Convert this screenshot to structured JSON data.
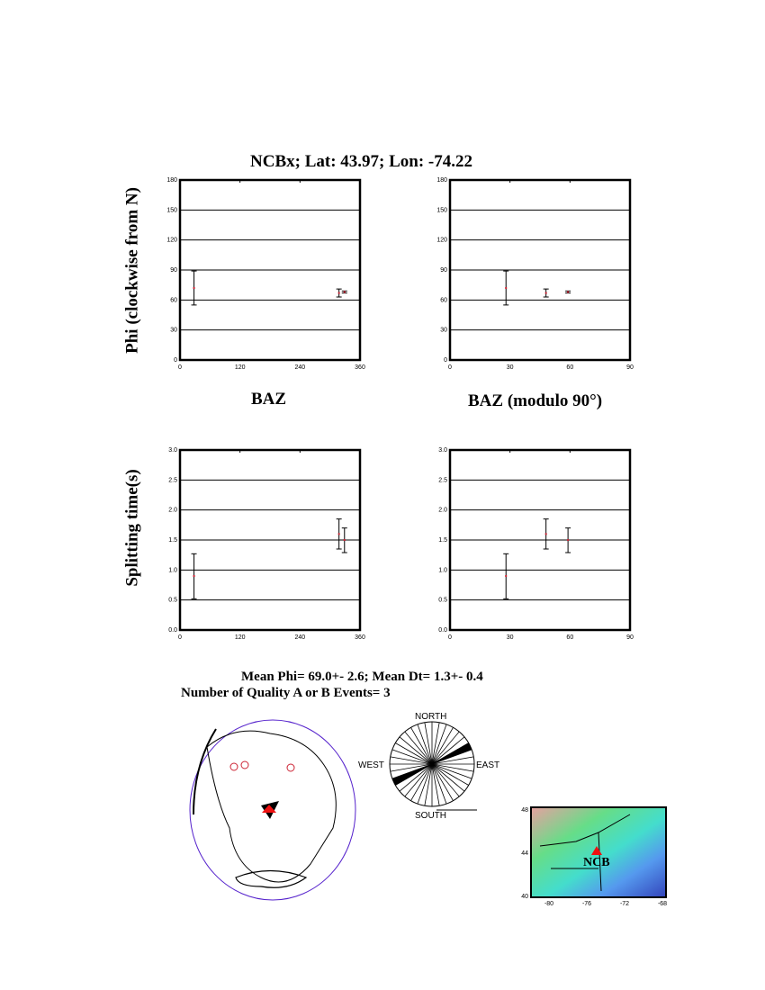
{
  "title": "NCBx; Lat:  43.97;  Lon:  -74.22",
  "ylabel_phi": "Phi (clockwise from N)",
  "ylabel_dt": "Splitting time(s)",
  "xlabel_baz": "BAZ",
  "xlabel_baz_mod": "BAZ (modulo 90°)",
  "summary": {
    "mean": "Mean Phi= 69.0+-  2.6; Mean Dt=  1.3+-  0.4",
    "count": "Number of Quality A or B Events=  3"
  },
  "colors": {
    "point": "#cc2233",
    "station": "#ee1111",
    "plate": "#5522cc"
  },
  "chart_data": [
    {
      "type": "scatter",
      "id": "phi_baz",
      "xlim": [
        0,
        360
      ],
      "ylim": [
        0,
        180
      ],
      "xticks": [
        "0",
        "120",
        "240",
        "360"
      ],
      "yticks": [
        "0",
        "30",
        "60",
        "90",
        "120",
        "150",
        "180"
      ],
      "grid": "horizontal",
      "points": [
        {
          "x": 28,
          "y": 72,
          "lo": 55,
          "hi": 89
        },
        {
          "x": 318,
          "y": 67,
          "lo": 63,
          "hi": 71
        },
        {
          "x": 329,
          "y": 68,
          "lo": 67,
          "hi": 69
        }
      ]
    },
    {
      "type": "scatter",
      "id": "phi_baz_mod",
      "xlim": [
        0,
        90
      ],
      "ylim": [
        0,
        180
      ],
      "xticks": [
        "0",
        "30",
        "60",
        "90"
      ],
      "yticks": [
        "0",
        "30",
        "60",
        "90",
        "120",
        "150",
        "180"
      ],
      "grid": "horizontal",
      "points": [
        {
          "x": 28,
          "y": 72,
          "lo": 55,
          "hi": 89
        },
        {
          "x": 48,
          "y": 67,
          "lo": 63,
          "hi": 71
        },
        {
          "x": 59,
          "y": 68,
          "lo": 67,
          "hi": 69
        }
      ]
    },
    {
      "type": "scatter",
      "id": "dt_baz",
      "xlim": [
        0,
        360
      ],
      "ylim": [
        0,
        3
      ],
      "xticks": [
        "0",
        "120",
        "240",
        "360"
      ],
      "yticks": [
        "0.0",
        "0.5",
        "1.0",
        "1.5",
        "2.0",
        "2.5",
        "3.0"
      ],
      "grid": "horizontal",
      "points": [
        {
          "x": 28,
          "y": 0.9,
          "lo": 0.52,
          "hi": 1.27
        },
        {
          "x": 318,
          "y": 1.6,
          "lo": 1.35,
          "hi": 1.85
        },
        {
          "x": 329,
          "y": 1.5,
          "lo": 1.29,
          "hi": 1.7
        }
      ]
    },
    {
      "type": "scatter",
      "id": "dt_baz_mod",
      "xlim": [
        0,
        90
      ],
      "ylim": [
        0,
        3
      ],
      "xticks": [
        "0",
        "30",
        "60",
        "90"
      ],
      "yticks": [
        "0.0",
        "0.5",
        "1.0",
        "1.5",
        "2.0",
        "2.5",
        "3.0"
      ],
      "grid": "horizontal",
      "points": [
        {
          "x": 28,
          "y": 0.9,
          "lo": 0.52,
          "hi": 1.27
        },
        {
          "x": 48,
          "y": 1.6,
          "lo": 1.35,
          "hi": 1.85
        },
        {
          "x": 59,
          "y": 1.5,
          "lo": 1.29,
          "hi": 1.7
        }
      ]
    }
  ],
  "rose": {
    "north": "NORTH",
    "south": "SOUTH",
    "east": "EAST",
    "west": "WEST",
    "bin_deg": 10,
    "filled_bins": [
      60,
      240
    ]
  },
  "map": {
    "station": "NCB",
    "lat_ticks": [
      "48",
      "44",
      "40"
    ],
    "lon_ticks": [
      "-80",
      "-76",
      "-72",
      "-68"
    ]
  }
}
